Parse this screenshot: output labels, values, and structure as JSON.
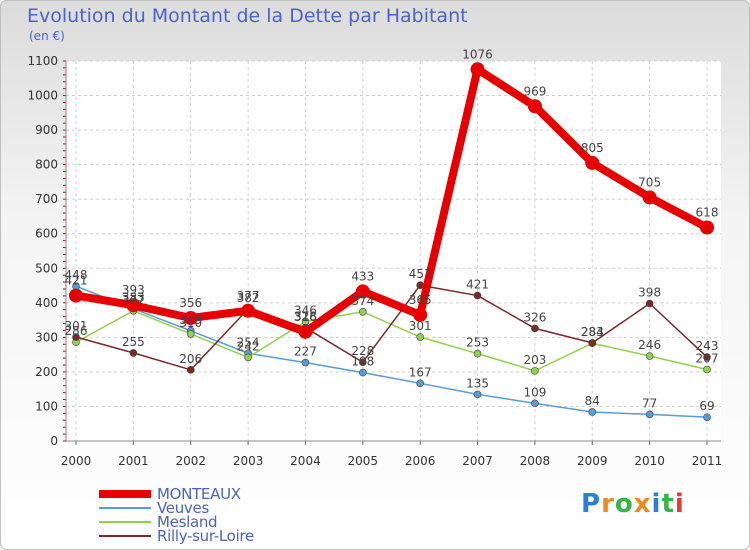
{
  "header": {
    "title": "Evolution du Montant de la Dette par Habitant",
    "unit": "(en €)"
  },
  "brand": {
    "letters": [
      "P",
      "r",
      "o",
      "x",
      "i",
      "t",
      "i"
    ],
    "colors": [
      "#2b7fd6",
      "#f08a1c",
      "#38b349",
      "#f08a1c",
      "#2b7fd6",
      "#38b349",
      "#e53935"
    ]
  },
  "chart_data": {
    "type": "line",
    "title": "Evolution du Montant de la Dette par Habitant",
    "ylabel": "(en €)",
    "xlabel": "",
    "x": [
      2000,
      2001,
      2002,
      2003,
      2004,
      2005,
      2006,
      2007,
      2008,
      2009,
      2010,
      2011
    ],
    "ylim": [
      0,
      1100
    ],
    "yticks": [
      0,
      100,
      200,
      300,
      400,
      500,
      600,
      700,
      800,
      900,
      1000,
      1100
    ],
    "grid": true,
    "legend_position": "bottom-left",
    "series": [
      {
        "name": "MONTEAUX",
        "color": "#e60000",
        "values": [
          421,
          393,
          356,
          377,
          316,
          433,
          365,
          1076,
          969,
          805,
          705,
          618
        ]
      },
      {
        "name": "Veuves",
        "color": "#5b9bd5",
        "values": [
          448,
          383,
          319,
          254,
          227,
          198,
          167,
          135,
          109,
          84,
          77,
          69
        ]
      },
      {
        "name": "Mesland",
        "color": "#92d050",
        "values": [
          286,
          377,
          310,
          242,
          346,
          374,
          301,
          253,
          203,
          283,
          246,
          207
        ]
      },
      {
        "name": "Rilly-sur-Loire",
        "color": "#7a2828",
        "values": [
          301,
          255,
          206,
          382,
          328,
          228,
          451,
          421,
          326,
          284,
          398,
          243
        ]
      }
    ]
  }
}
